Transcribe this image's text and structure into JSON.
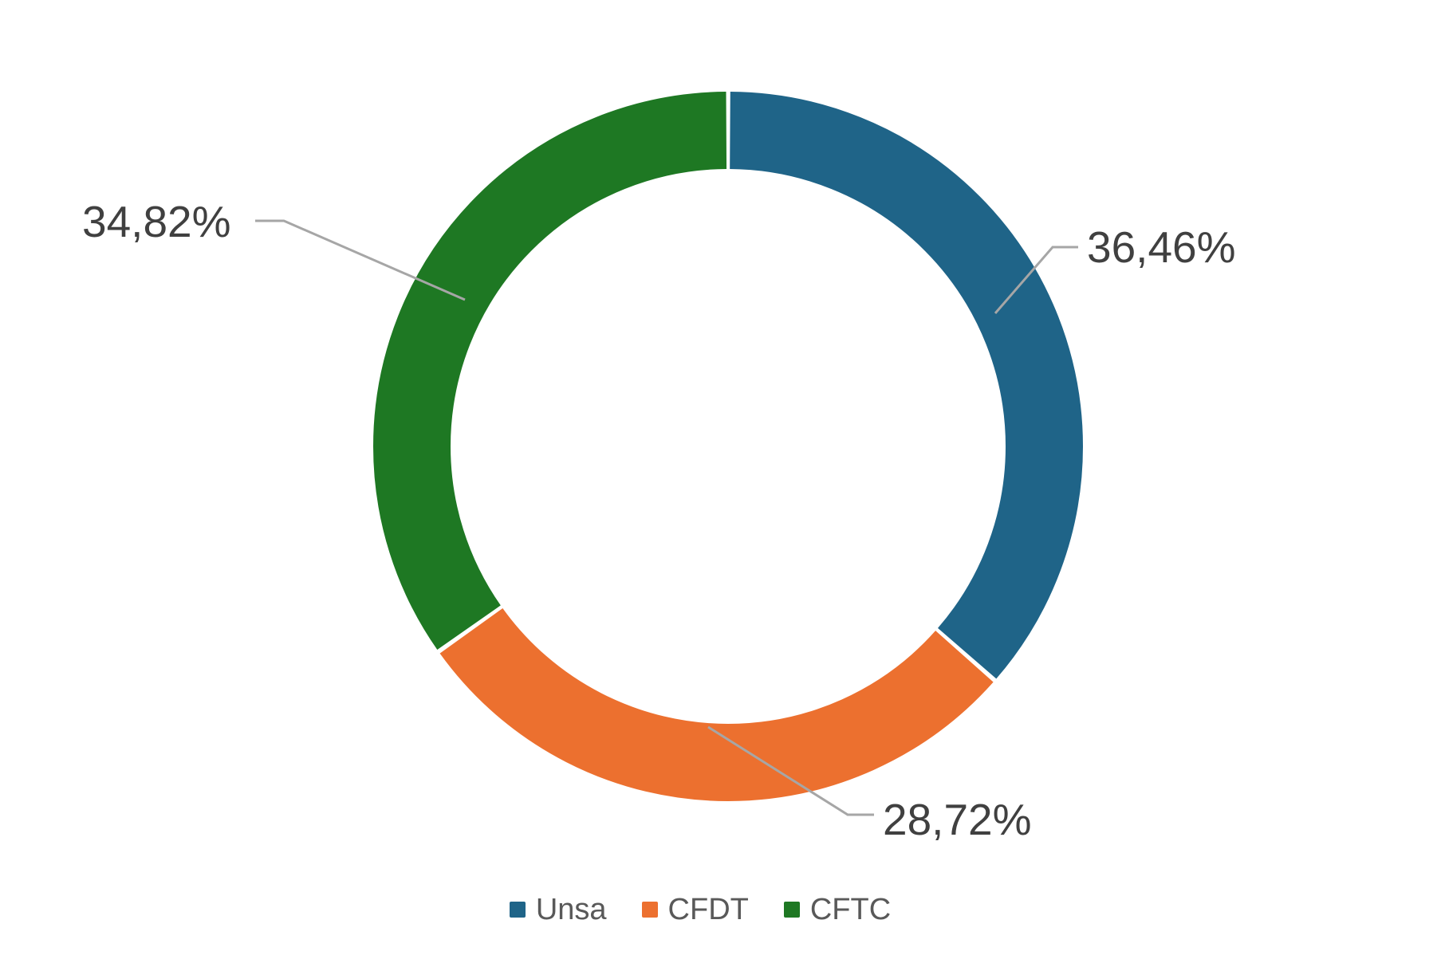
{
  "chart_data": {
    "type": "pie",
    "subtype": "donut",
    "title": "",
    "categories": [
      "Unsa",
      "CFDT",
      "CFTC"
    ],
    "values": [
      36.46,
      28.72,
      34.82
    ],
    "value_labels": [
      "36,46%",
      "28,72%",
      "34,82%"
    ],
    "colors": [
      "#1F6488",
      "#EC702F",
      "#1E7823"
    ],
    "legend_position": "bottom",
    "start_angle_deg": 0,
    "direction": "clockwise",
    "hole_ratio": 0.78,
    "background": "#FFFFFF",
    "label_color": "#404040",
    "legend_text_color": "#595959",
    "leader_line_color": "#A6A6A6"
  }
}
